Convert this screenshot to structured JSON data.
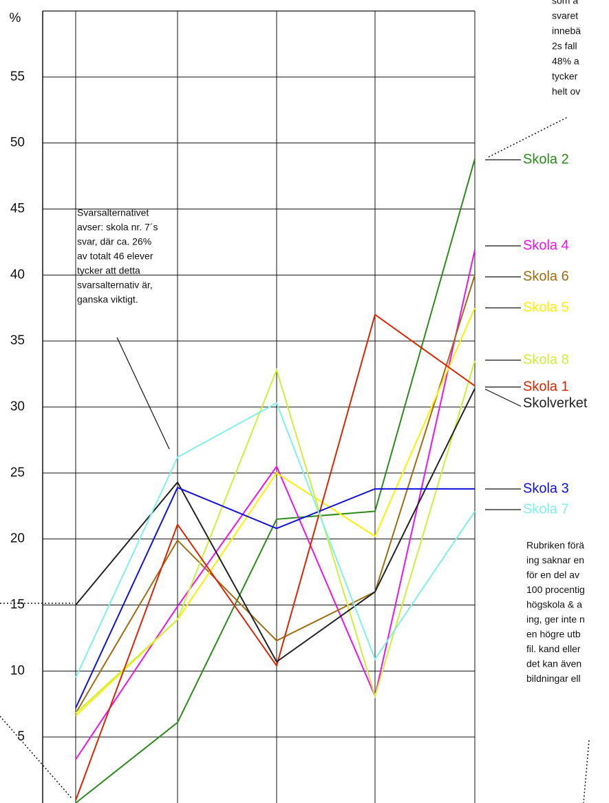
{
  "chart_data": {
    "type": "line",
    "y_label": "%",
    "categories": [
      null,
      null,
      null,
      null,
      null
    ],
    "ylim": [
      0,
      60
    ],
    "yticks": [
      5,
      10,
      15,
      20,
      25,
      30,
      35,
      40,
      45,
      50,
      55
    ],
    "grid": true,
    "series": [
      {
        "name": "Skola 2",
        "color": "#2a8a1a",
        "values": [
          0,
          6.1,
          21.5,
          22.1,
          48.8
        ]
      },
      {
        "name": "Skola 4",
        "color": "#ee11ee",
        "values": [
          3.3,
          14.9,
          25.5,
          8.1,
          41.9
        ]
      },
      {
        "name": "Skola 6",
        "color": "#a26a10",
        "values": [
          6.8,
          19.9,
          12.3,
          16,
          40
        ]
      },
      {
        "name": "Skola 5",
        "color": "#ffee00",
        "values": [
          6.6,
          13.9,
          25,
          20.2,
          37.5
        ]
      },
      {
        "name": "Skola 8",
        "color": "#ccf03a",
        "values": [
          6.8,
          13.9,
          32.8,
          8.1,
          33.5
        ]
      },
      {
        "name": "Skola 1",
        "color": "#dd2200",
        "values": [
          0.2,
          21.1,
          10.4,
          37,
          31.6
        ]
      },
      {
        "name": "Skolverket",
        "color": "#222222",
        "values": [
          15,
          24.3,
          10.7,
          16,
          31.4
        ]
      },
      {
        "name": "Skola 3",
        "color": "#1010dd",
        "values": [
          7.2,
          23.9,
          20.8,
          23.8,
          23.8
        ]
      },
      {
        "name": "Skola 7",
        "color": "#7ff0e8",
        "values": [
          9.5,
          26.2,
          30.3,
          10.9,
          22.1
        ]
      }
    ],
    "annotations": [
      {
        "lines": [
          "som a",
          "svaret",
          "innebä",
          "2s fall",
          "48% a",
          "tycker",
          "helt ov"
        ]
      },
      {
        "lines": [
          "Svarsalternativet",
          "avser: skola nr. 7´s",
          "svar, där ca. 26%",
          "av totalt 46 elever",
          "tycker att detta",
          "svarsalternativ är,",
          "ganska viktigt."
        ]
      },
      {
        "lines": [
          "Rubriken förä",
          "ing saknar en",
          "för en del av",
          "100 procentig",
          "högskola & a",
          "ing, ger inte n",
          "en högre utb",
          "fil. kand eller",
          "det kan även",
          "bildningar ell"
        ]
      }
    ]
  }
}
